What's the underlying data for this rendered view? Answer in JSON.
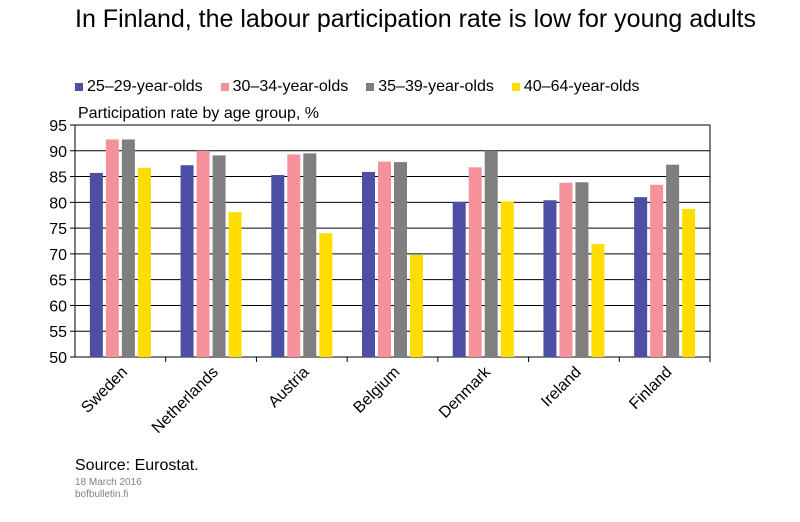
{
  "title": "In Finland, the labour participation rate is low for young adults",
  "source": "Source: Eurostat.",
  "date": "18 March 2016",
  "site": "bofbulletin.fi",
  "chart_data": {
    "type": "bar",
    "ylabel": "Participation rate by age group, %",
    "ylim": [
      50,
      95
    ],
    "yticks": [
      95,
      90,
      85,
      80,
      75,
      70,
      65,
      60,
      55,
      50
    ],
    "grid": true,
    "legend_position": "top",
    "categories": [
      "Sweden",
      "Netherlands",
      "Austria",
      "Belgium",
      "Denmark",
      "Ireland",
      "Finland"
    ],
    "series": [
      {
        "name": "25–29-year-olds",
        "color": "#4d4fa3",
        "values": [
          85.7,
          87.2,
          85.3,
          85.9,
          80.1,
          80.4,
          81.0
        ]
      },
      {
        "name": "30–34-year-olds",
        "color": "#f4919a",
        "values": [
          92.2,
          90.0,
          89.3,
          87.9,
          86.8,
          83.8,
          83.4
        ]
      },
      {
        "name": "35–39-year-olds",
        "color": "#7f7f7f",
        "values": [
          92.2,
          89.1,
          89.5,
          87.8,
          90.0,
          83.9,
          87.3
        ]
      },
      {
        "name": "40–64-year-olds",
        "color": "#ffdd00",
        "values": [
          86.7,
          78.1,
          74.0,
          69.8,
          80.2,
          71.9,
          78.7
        ]
      }
    ]
  }
}
